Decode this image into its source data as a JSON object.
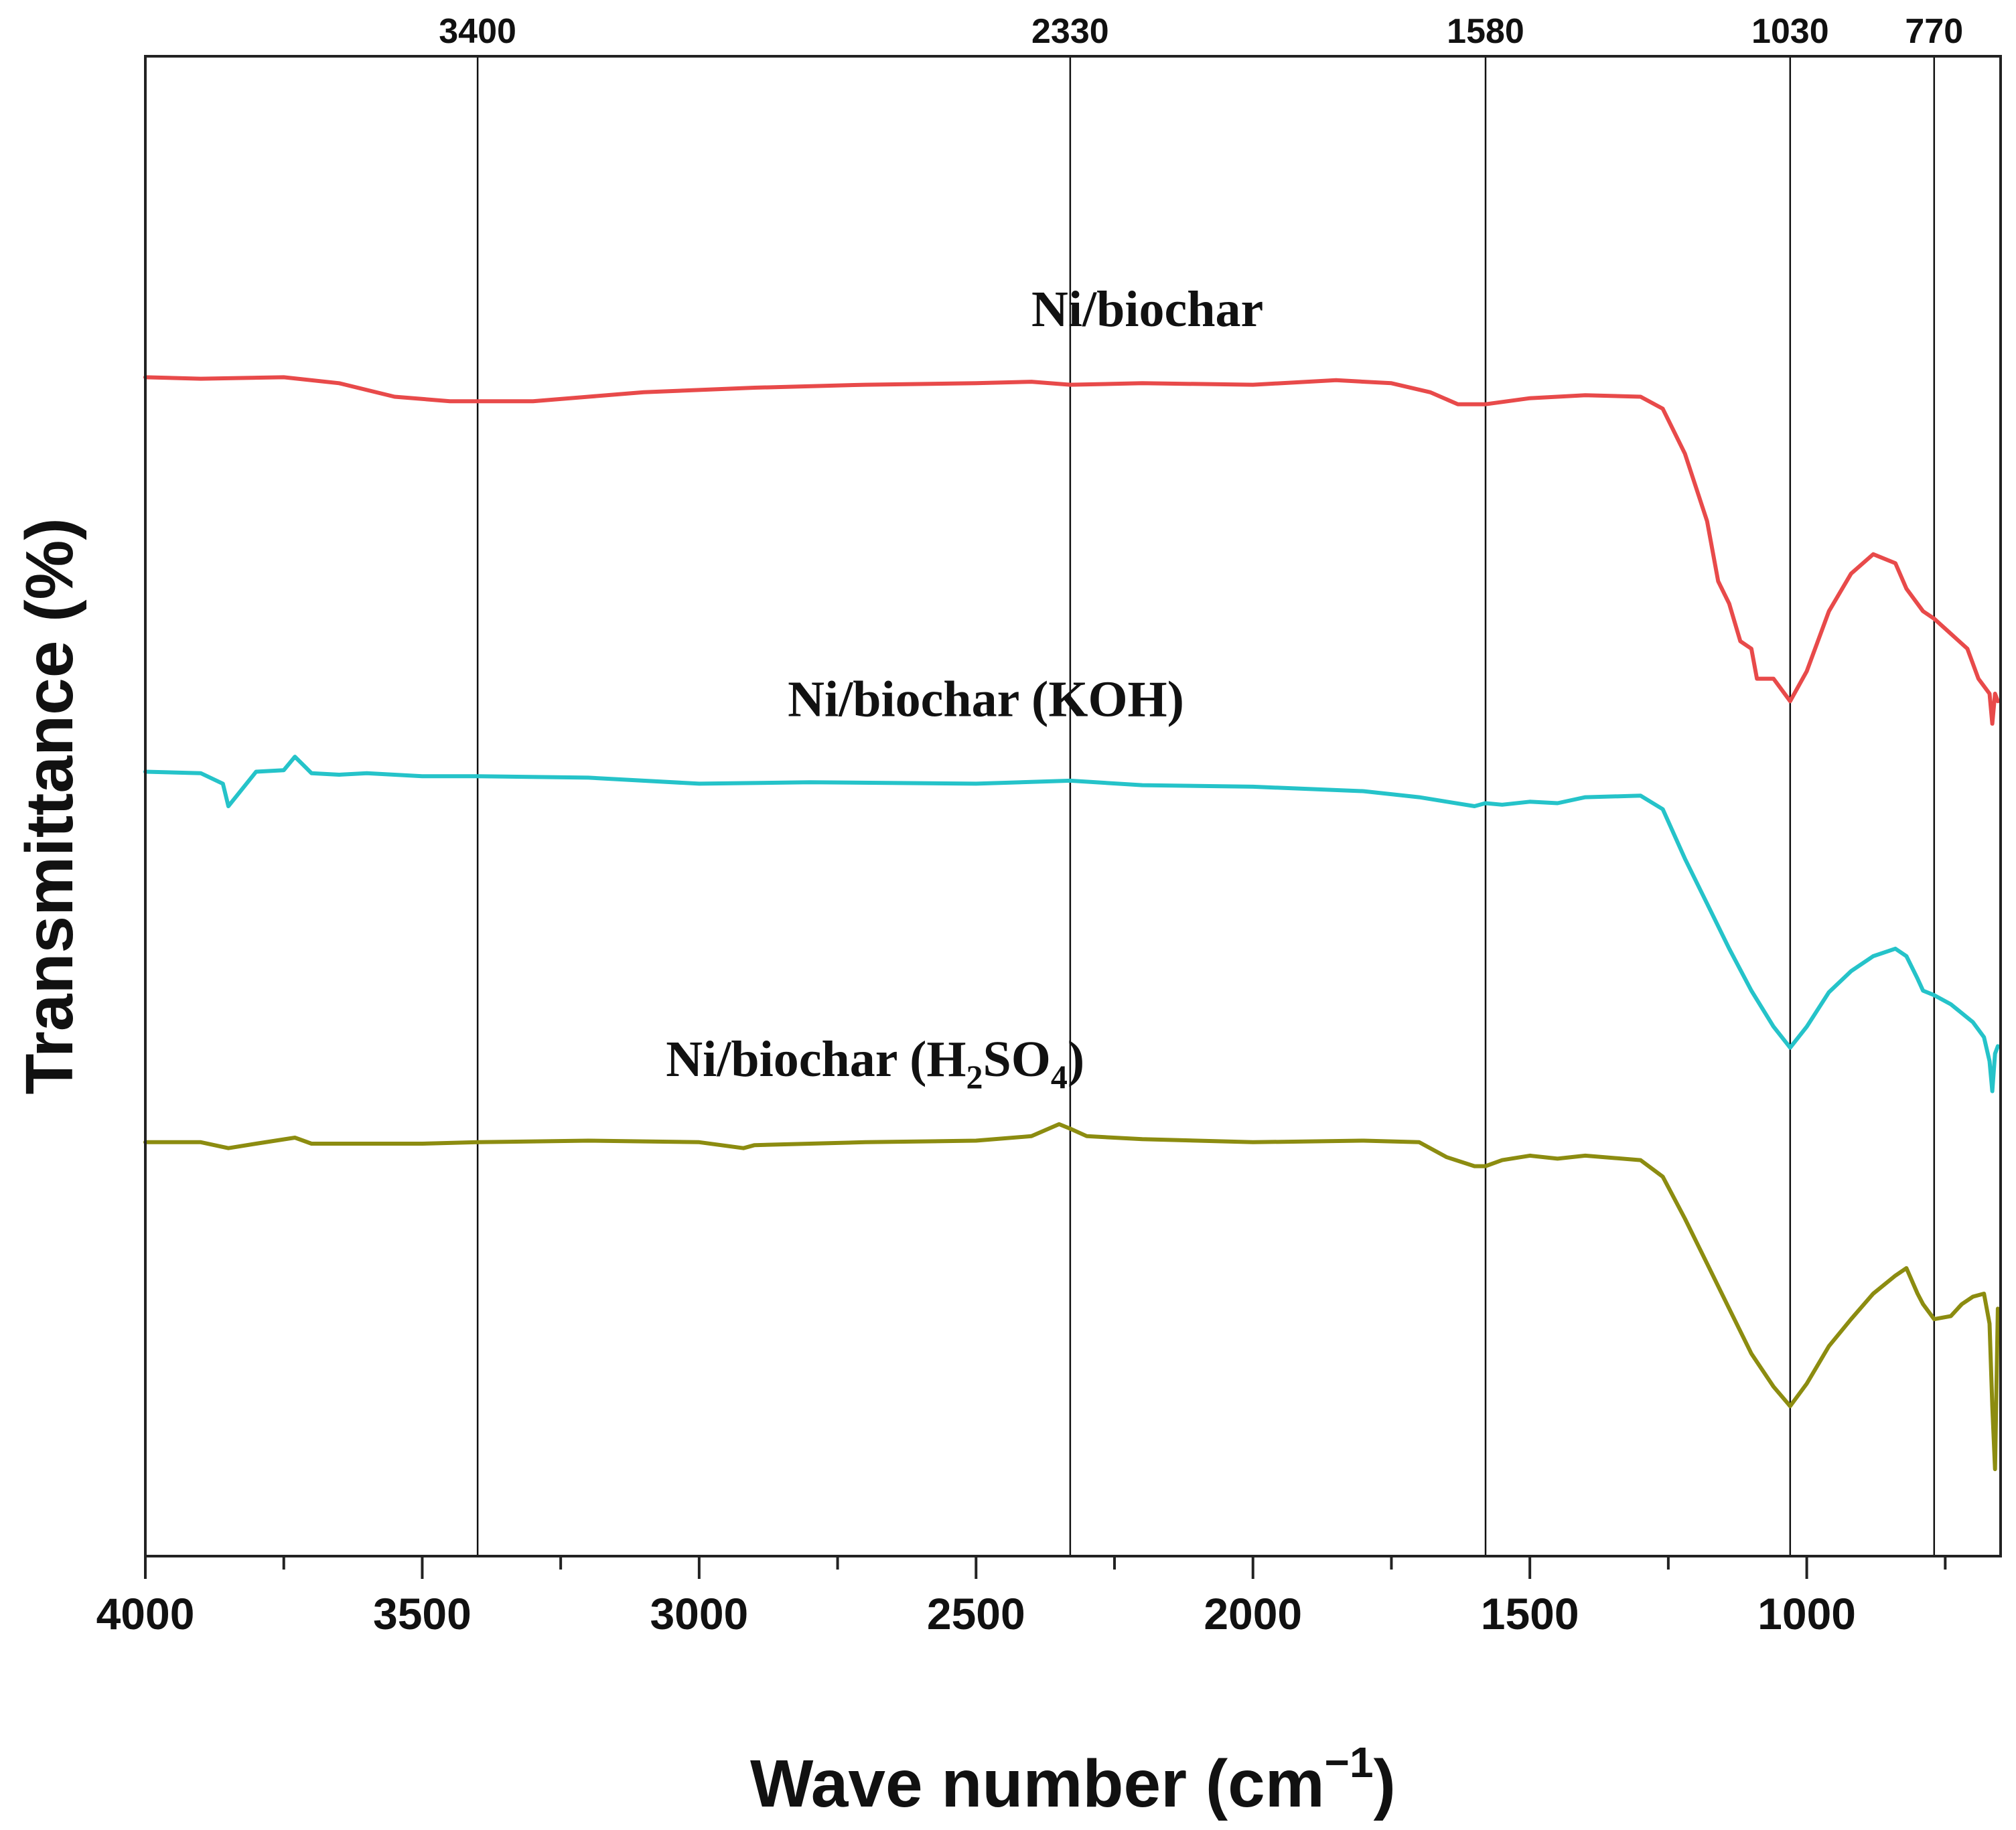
{
  "chart_data": {
    "type": "line",
    "title": "",
    "xlabel": "Wave number (cm",
    "xlabel_sup": "−1",
    "xlabel_close": ")",
    "ylabel": "Transmittance (%)",
    "xlim": [
      4000,
      650
    ],
    "ylim": [
      0,
      100
    ],
    "x_ticks": [
      4000,
      3500,
      3000,
      2500,
      2000,
      1500,
      1000
    ],
    "x_tick_labels": [
      "4000",
      "3500",
      "3000",
      "2500",
      "2000",
      "1500",
      "1000"
    ],
    "peak_lines": [
      3400,
      2330,
      1580,
      1030,
      770
    ],
    "peak_labels": [
      "3400",
      "2330",
      "1580",
      "1030",
      "770"
    ],
    "series": [
      {
        "name": "Ni/biochar",
        "label_text": "Ni/biochar",
        "label_x": 2400,
        "label_y": 82,
        "color": "#e84a4a",
        "x": [
          4000,
          3900,
          3750,
          3650,
          3550,
          3450,
          3400,
          3300,
          3200,
          3100,
          2900,
          2700,
          2500,
          2400,
          2330,
          2200,
          2000,
          1850,
          1750,
          1680,
          1630,
          1580,
          1500,
          1400,
          1300,
          1260,
          1220,
          1180,
          1160,
          1140,
          1120,
          1100,
          1090,
          1060,
          1030,
          1000,
          960,
          920,
          880,
          840,
          820,
          790,
          770,
          740,
          710,
          690,
          670,
          665,
          660,
          655
        ],
        "y": [
          78.6,
          78.5,
          78.6,
          78.2,
          77.3,
          77.0,
          77.0,
          77.0,
          77.3,
          77.6,
          77.9,
          78.1,
          78.2,
          78.3,
          78.1,
          78.2,
          78.1,
          78.4,
          78.2,
          77.6,
          76.8,
          76.8,
          77.2,
          77.4,
          77.3,
          76.5,
          73.5,
          69.0,
          65.0,
          63.5,
          61.0,
          60.5,
          58.5,
          58.5,
          57.0,
          59.0,
          63.0,
          65.5,
          66.8,
          66.2,
          64.5,
          63.0,
          62.5,
          61.5,
          60.5,
          58.5,
          57.5,
          55.5,
          57.5,
          57.0
        ]
      },
      {
        "name": "Ni/biochar (KOH)",
        "label_text": "Ni/biochar (KOH)",
        "label_x": 2840,
        "label_y": 56,
        "color": "#25c3c9",
        "x": [
          4000,
          3900,
          3860,
          3850,
          3800,
          3750,
          3730,
          3700,
          3650,
          3600,
          3500,
          3400,
          3200,
          3000,
          2800,
          2500,
          2330,
          2200,
          2000,
          1800,
          1700,
          1650,
          1600,
          1580,
          1550,
          1500,
          1450,
          1400,
          1300,
          1260,
          1220,
          1180,
          1140,
          1100,
          1060,
          1030,
          1000,
          960,
          920,
          880,
          840,
          820,
          800,
          790,
          770,
          740,
          700,
          680,
          670,
          665,
          660,
          655
        ],
        "y": [
          52.3,
          52.2,
          51.5,
          50.0,
          52.3,
          52.4,
          53.3,
          52.2,
          52.1,
          52.2,
          52.0,
          52.0,
          51.9,
          51.5,
          51.6,
          51.5,
          51.7,
          51.4,
          51.3,
          51.0,
          50.6,
          50.3,
          50.0,
          50.2,
          50.1,
          50.3,
          50.2,
          50.6,
          50.7,
          49.8,
          46.5,
          43.5,
          40.5,
          37.7,
          35.3,
          33.9,
          35.3,
          37.6,
          39.0,
          40.0,
          40.5,
          40.0,
          38.5,
          37.7,
          37.4,
          36.8,
          35.6,
          34.6,
          33.0,
          31.0,
          33.5,
          34.0
        ]
      },
      {
        "name": "Ni/biochar (H2SO4)",
        "label_text": "Ni/biochar (H",
        "label_sub1": "2",
        "label_mid": "SO",
        "label_sub2": "4",
        "label_close": ")",
        "label_x": 3060,
        "label_y": 32,
        "color": "#8c8c10",
        "x": [
          4000,
          3900,
          3850,
          3800,
          3730,
          3700,
          3650,
          3500,
          3400,
          3200,
          3000,
          2920,
          2900,
          2800,
          2700,
          2500,
          2400,
          2350,
          2330,
          2300,
          2200,
          2000,
          1800,
          1700,
          1650,
          1600,
          1580,
          1550,
          1500,
          1450,
          1400,
          1300,
          1260,
          1220,
          1180,
          1140,
          1100,
          1060,
          1030,
          1000,
          960,
          920,
          880,
          840,
          820,
          800,
          790,
          770,
          740,
          720,
          700,
          680,
          670,
          665,
          660,
          655
        ],
        "y": [
          27.6,
          27.6,
          27.2,
          27.5,
          27.9,
          27.5,
          27.5,
          27.5,
          27.6,
          27.7,
          27.6,
          27.2,
          27.4,
          27.5,
          27.6,
          27.7,
          28.0,
          28.8,
          28.5,
          28.0,
          27.8,
          27.6,
          27.7,
          27.6,
          26.6,
          26.0,
          26.0,
          26.4,
          26.7,
          26.5,
          26.7,
          26.4,
          25.3,
          22.5,
          19.5,
          16.5,
          13.5,
          11.3,
          10.0,
          11.5,
          14.0,
          15.8,
          17.5,
          18.7,
          19.2,
          17.5,
          16.8,
          15.8,
          16.0,
          16.8,
          17.3,
          17.5,
          15.5,
          10.0,
          5.8,
          16.5
        ]
      }
    ]
  }
}
